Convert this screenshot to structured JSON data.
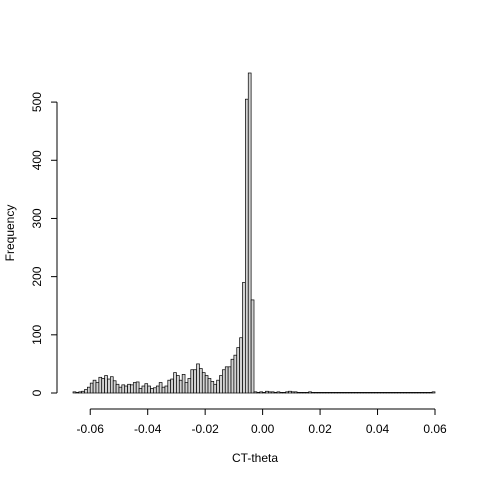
{
  "chart_data": {
    "type": "bar",
    "title": "",
    "xlabel": "CT-theta",
    "ylabel": "Frequency",
    "xlim": [
      -0.066,
      0.06
    ],
    "ylim": [
      0,
      550
    ],
    "bin_width": 0.001,
    "bin_start": -0.066,
    "x_ticks": [
      -0.06,
      -0.04,
      -0.02,
      0.0,
      0.02,
      0.04,
      0.06
    ],
    "x_tick_labels": [
      "-0.06",
      "-0.04",
      "-0.02",
      "0.00",
      "0.02",
      "0.04",
      "0.06"
    ],
    "y_ticks": [
      0,
      100,
      200,
      300,
      400,
      500
    ],
    "y_tick_labels": [
      "0",
      "100",
      "200",
      "300",
      "400",
      "500"
    ],
    "grid": false,
    "bar_fill": "#d3d3d3",
    "bar_stroke": "#000000",
    "counts": [
      2,
      1,
      2,
      3,
      6,
      10,
      17,
      22,
      18,
      27,
      25,
      30,
      24,
      28,
      21,
      15,
      10,
      14,
      12,
      15,
      14,
      18,
      19,
      8,
      12,
      16,
      12,
      8,
      9,
      12,
      18,
      10,
      12,
      22,
      24,
      35,
      30,
      22,
      32,
      18,
      25,
      40,
      40,
      50,
      42,
      35,
      30,
      25,
      20,
      15,
      22,
      30,
      40,
      45,
      45,
      58,
      65,
      78,
      95,
      190,
      505,
      550,
      160,
      2,
      1,
      2,
      1,
      3,
      2,
      2,
      1,
      2,
      1,
      1,
      2,
      3,
      2,
      2,
      1,
      1,
      1,
      1,
      2,
      1,
      1,
      1,
      1,
      1,
      1,
      1,
      1,
      1,
      1,
      1,
      1,
      1,
      1,
      1,
      1,
      1,
      1,
      1,
      1,
      1,
      1,
      1,
      1,
      1,
      1,
      1,
      1,
      1,
      1,
      1,
      1,
      1,
      1,
      1,
      1,
      1,
      1,
      1,
      1,
      1,
      1,
      2
    ]
  }
}
